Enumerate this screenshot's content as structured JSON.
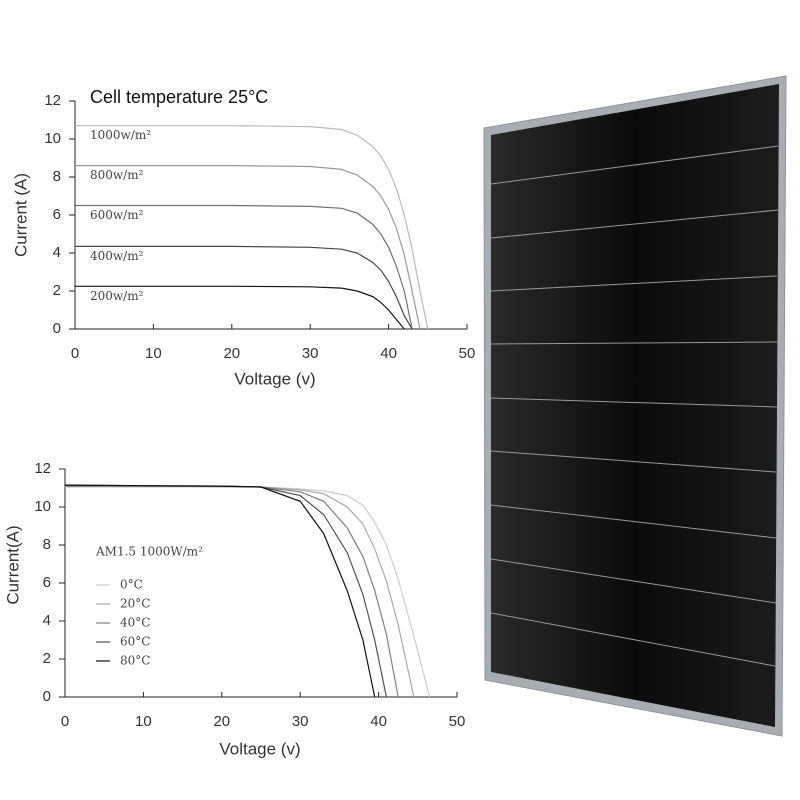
{
  "chart_data": [
    {
      "type": "line",
      "title": "Cell temperature 25°C",
      "x_label": "Voltage (v)",
      "y_label": "Current (A)",
      "xlim": [
        0,
        50
      ],
      "xticks": [
        0,
        10,
        20,
        30,
        40,
        50
      ],
      "ylim": [
        0,
        12
      ],
      "yticks": [
        0,
        2,
        4,
        6,
        8,
        10,
        12
      ],
      "legend": "inline",
      "x": [
        0,
        10,
        20,
        30,
        34,
        36,
        38,
        39,
        40,
        41,
        42,
        43,
        44,
        45
      ],
      "series": [
        {
          "name": "1000w/m²",
          "color": "#bbbbbb",
          "values": [
            10.7,
            10.7,
            10.7,
            10.65,
            10.5,
            10.2,
            9.6,
            9.1,
            8.4,
            7.4,
            6.0,
            4.2,
            2.0,
            0
          ]
        },
        {
          "name": "800w/m²",
          "color": "#999999",
          "values": [
            8.6,
            8.6,
            8.6,
            8.55,
            8.4,
            8.1,
            7.5,
            7.0,
            6.3,
            5.3,
            3.9,
            2.0,
            0,
            null
          ]
        },
        {
          "name": "600w/m²",
          "color": "#707070",
          "values": [
            6.5,
            6.5,
            6.5,
            6.45,
            6.35,
            6.1,
            5.5,
            5.0,
            4.3,
            3.3,
            2.0,
            0,
            null,
            null
          ]
        },
        {
          "name": "400w/m²",
          "color": "#444444",
          "values": [
            4.35,
            4.35,
            4.35,
            4.3,
            4.2,
            4.0,
            3.5,
            3.1,
            2.5,
            1.7,
            0.7,
            0,
            null,
            null
          ]
        },
        {
          "name": "200w/m²",
          "color": "#111111",
          "values": [
            2.25,
            2.25,
            2.25,
            2.22,
            2.15,
            2.0,
            1.7,
            1.4,
            1.0,
            0.5,
            0,
            null,
            null,
            null
          ]
        }
      ]
    },
    {
      "type": "line",
      "annotation": "AM1.5 1000W/m²",
      "x_label": "Voltage (v)",
      "y_label": "Current(A)",
      "xlim": [
        0,
        50
      ],
      "xticks": [
        0,
        10,
        20,
        30,
        40,
        50
      ],
      "ylim": [
        0,
        12
      ],
      "yticks": [
        0,
        2,
        4,
        6,
        8,
        10,
        12
      ],
      "legend": "left",
      "x": [
        0,
        10,
        20,
        25,
        30,
        33,
        36,
        38,
        39.5,
        41,
        42.5,
        44.5,
        46.5
      ],
      "series": [
        {
          "name": "0°C",
          "color": "#cccccc",
          "values": [
            11.05,
            11.05,
            11.05,
            11.05,
            10.95,
            10.85,
            10.6,
            10.1,
            9.2,
            8.0,
            6.2,
            3.2,
            0
          ]
        },
        {
          "name": "20°C",
          "color": "#aaaaaa",
          "values": [
            11.1,
            11.1,
            11.08,
            11.05,
            10.9,
            10.7,
            10.0,
            9.1,
            7.8,
            6.1,
            3.8,
            0,
            null
          ]
        },
        {
          "name": "40°C",
          "color": "#808080",
          "values": [
            11.1,
            11.1,
            11.08,
            11.05,
            10.8,
            10.3,
            8.9,
            7.4,
            5.6,
            3.3,
            0,
            null,
            null
          ]
        },
        {
          "name": "60°C",
          "color": "#505050",
          "values": [
            11.15,
            11.12,
            11.1,
            11.05,
            10.6,
            9.6,
            7.6,
            5.4,
            3.0,
            0,
            null,
            null,
            null
          ]
        },
        {
          "name": "80°C",
          "color": "#111111",
          "values": [
            11.15,
            11.12,
            11.1,
            11.05,
            10.3,
            8.6,
            5.6,
            3.0,
            0,
            null,
            null,
            null,
            null
          ]
        }
      ]
    }
  ]
}
